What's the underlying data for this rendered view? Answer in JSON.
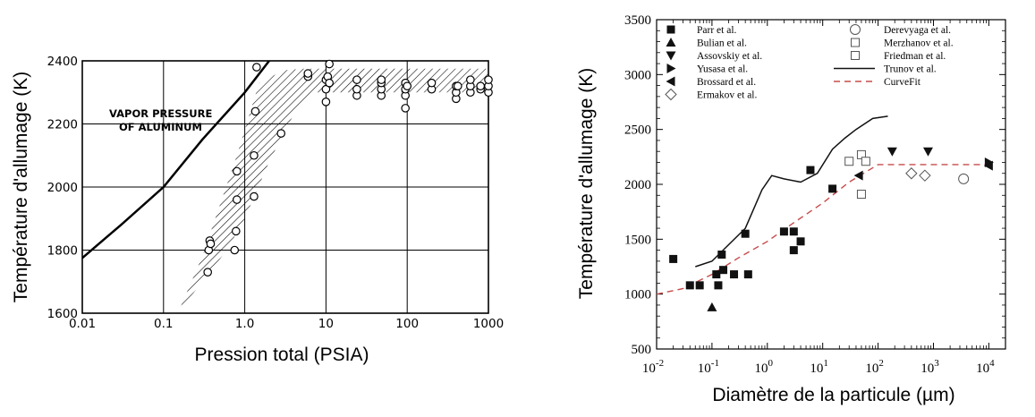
{
  "chart_data": [
    {
      "type": "scatter",
      "title": "",
      "xlabel": "Pression total (PSIA)",
      "ylabel": "Température d'allumage (K)",
      "xscale": "log",
      "xlim": [
        0.01,
        1000
      ],
      "ylim": [
        1600,
        2400
      ],
      "x_tick_labels": [
        "0.01",
        "0.1",
        "1.0",
        "10",
        "100",
        "1000"
      ],
      "y_tick_labels": [
        "1600",
        "1800",
        "2000",
        "2200",
        "2400"
      ],
      "grid": true,
      "annotation_lines": [
        "VAPOR PRESSURE",
        "OF ALUMINUM"
      ],
      "vapor_pressure_curve": {
        "x": [
          0.01,
          0.03,
          0.1,
          0.3,
          1.0,
          2.0
        ],
        "y": [
          1775,
          1880,
          2000,
          2150,
          2300,
          2400
        ]
      },
      "shaded_band": {
        "upper": {
          "x": [
            0.3,
            0.8,
            1.5,
            3,
            5,
            10,
            100,
            1000
          ],
          "y": [
            1780,
            2100,
            2330,
            2370,
            2375,
            2375,
            2375,
            2375
          ]
        },
        "lower": {
          "x": [
            0.15,
            0.3,
            0.6,
            1.0,
            2.0,
            4.0,
            7.0,
            100,
            1000
          ],
          "y": [
            1600,
            1700,
            1800,
            1900,
            2080,
            2230,
            2300,
            2300,
            2300
          ]
        }
      },
      "series": [
        {
          "x": [
            0.35,
            0.36,
            0.37,
            0.38,
            0.75,
            0.78,
            0.8,
            0.8,
            1.3,
            1.3,
            1.35,
            1.4,
            2.8,
            6,
            6,
            10,
            10,
            10,
            10.5,
            11,
            11,
            24,
            24,
            24,
            48,
            48,
            48,
            48,
            95,
            95,
            95,
            95,
            100,
            200,
            200,
            400,
            400,
            400,
            420,
            600,
            600,
            600,
            800,
            800,
            1000,
            1000,
            1000
          ],
          "y": [
            1730,
            1800,
            1830,
            1820,
            1800,
            1860,
            1960,
            2050,
            1970,
            2100,
            2240,
            2380,
            2170,
            2350,
            2360,
            2270,
            2310,
            2340,
            2350,
            2390,
            2330,
            2290,
            2310,
            2340,
            2290,
            2310,
            2330,
            2340,
            2250,
            2290,
            2310,
            2330,
            2320,
            2310,
            2330,
            2280,
            2300,
            2320,
            2320,
            2300,
            2320,
            2340,
            2310,
            2320,
            2300,
            2320,
            2340
          ]
        }
      ]
    },
    {
      "type": "scatter",
      "title": "",
      "xlabel": "Diamètre de la particule (µm)",
      "ylabel": "Température d'allumage (K)",
      "xscale": "log",
      "xlim": [
        0.01,
        20000
      ],
      "ylim": [
        500,
        3500
      ],
      "x_tick_exponents": [
        "-2",
        "-1",
        "0",
        "1",
        "2",
        "3",
        "4"
      ],
      "y_tick_labels": [
        "500",
        "1000",
        "1500",
        "2000",
        "2500",
        "3000",
        "3500"
      ],
      "grid": false,
      "legend_position": "top",
      "series": [
        {
          "name": "Parr et al.",
          "marker": "filled-square",
          "x": [
            0.02,
            0.04,
            0.06,
            0.12,
            0.13,
            0.15,
            0.16,
            0.25,
            0.4,
            0.45,
            2.0,
            3.0,
            3.0,
            4.0,
            6.0,
            15
          ],
          "y": [
            1320,
            1080,
            1080,
            1180,
            1080,
            1360,
            1220,
            1180,
            1550,
            1180,
            1570,
            1400,
            1570,
            1480,
            2130,
            1960
          ]
        },
        {
          "name": "Bulian et al.",
          "marker": "filled-triangle-up",
          "x": [
            0.1
          ],
          "y": [
            880
          ]
        },
        {
          "name": "Assovskiy et al.",
          "marker": "filled-triangle-down",
          "x": [
            180,
            800
          ],
          "y": [
            2300,
            2300
          ]
        },
        {
          "name": "Yusasa et al.",
          "marker": "filled-triangle-right",
          "x": [
            10000
          ],
          "y": [
            2200
          ]
        },
        {
          "name": "Brossard et al.",
          "marker": "filled-triangle-left",
          "x": [
            45,
            10000
          ],
          "y": [
            2080,
            2170
          ]
        },
        {
          "name": "Ermakov et al.",
          "marker": "open-diamond",
          "x": [
            400,
            700
          ],
          "y": [
            2100,
            2080
          ]
        },
        {
          "name": "Derevyaga et al.",
          "marker": "open-circle",
          "x": [
            3500
          ],
          "y": [
            2050
          ]
        },
        {
          "name": "Merzhanov et al.",
          "marker": "open-square",
          "x": [
            30,
            50,
            60
          ],
          "y": [
            2210,
            2270,
            2210
          ]
        },
        {
          "name": "Friedman et al.",
          "marker": "open-square",
          "x": [
            50
          ],
          "y": [
            1910
          ]
        },
        {
          "name": "Trunov et al.",
          "marker": "solid-line",
          "x": [
            0.05,
            0.1,
            0.2,
            0.4,
            0.8,
            1.2,
            2,
            4,
            8,
            15,
            25,
            40,
            80,
            150
          ],
          "y": [
            1250,
            1300,
            1450,
            1600,
            1950,
            2080,
            2050,
            2020,
            2100,
            2320,
            2420,
            2500,
            2600,
            2620
          ]
        },
        {
          "name": "CurveFit",
          "marker": "dashed-line",
          "x": [
            0.01,
            0.03,
            0.1,
            0.3,
            1,
            3,
            10,
            30,
            100,
            1000,
            10000
          ],
          "y": [
            1000,
            1050,
            1180,
            1330,
            1480,
            1650,
            1830,
            2020,
            2180,
            2180,
            2180
          ]
        }
      ],
      "colors": {
        "curvefit": "#c74b4b",
        "markers": "#111111"
      }
    }
  ]
}
